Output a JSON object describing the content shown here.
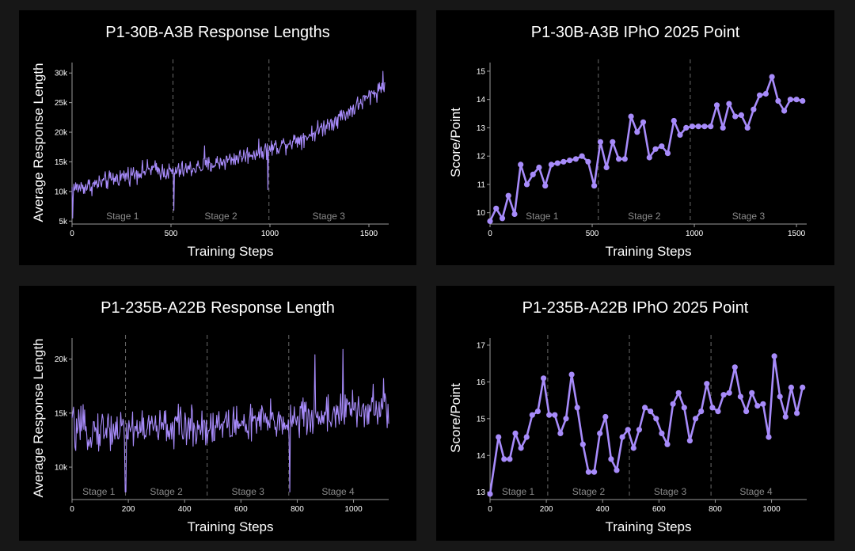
{
  "colors": {
    "background": "#171717",
    "panel": "#000000",
    "series": "#a78bfa",
    "text": "#ffffff",
    "stage_text": "#8a8a8a"
  },
  "chart_data": [
    {
      "id": "p30-len",
      "type": "line",
      "marker": false,
      "title": "P1-30B-A3B Response Lengths",
      "xlabel": "Training Steps",
      "ylabel": "Average Response Length",
      "xlim": [
        0,
        1600
      ],
      "ylim": [
        4500,
        31500
      ],
      "xticks": [
        0,
        500,
        1000,
        1500
      ],
      "xtick_labels": [
        "0",
        "500",
        "1000",
        "1500"
      ],
      "yticks": [
        5000,
        10000,
        15000,
        20000,
        25000,
        30000
      ],
      "ytick_labels": [
        "5k",
        "10k",
        "15k",
        "20k",
        "25k",
        "30k"
      ],
      "stage_boundaries": [
        510,
        995
      ],
      "stages": [
        {
          "label": "Stage 1",
          "x": 255
        },
        {
          "label": "Stage 2",
          "x": 752
        },
        {
          "label": "Stage 3",
          "x": 1297
        }
      ],
      "trend": {
        "x": [
          0,
          100,
          250,
          400,
          500,
          700,
          900,
          1000,
          1200,
          1300,
          1400,
          1500,
          1580
        ],
        "y": [
          10500,
          11000,
          12500,
          13800,
          13200,
          14500,
          16300,
          17200,
          19500,
          21500,
          23500,
          26000,
          28000
        ]
      },
      "noise": 1300,
      "n_points": 520,
      "spikes": [
        {
          "x": 3,
          "y": 5500
        },
        {
          "x": 515,
          "y": 6800
        },
        {
          "x": 990,
          "y": 10300
        },
        {
          "x": 670,
          "y": 17700
        },
        {
          "x": 1570,
          "y": 30300
        }
      ]
    },
    {
      "id": "p30-pt",
      "type": "line",
      "marker": true,
      "title": "P1-30B-A3B IPhO 2025 Point",
      "xlabel": "Training Steps",
      "ylabel": "Score/Point",
      "xlim": [
        0,
        1550
      ],
      "ylim": [
        9.6,
        15.25
      ],
      "xticks": [
        0,
        500,
        1000,
        1500
      ],
      "xtick_labels": [
        "0",
        "500",
        "1000",
        "1500"
      ],
      "yticks": [
        10,
        11,
        12,
        13,
        14,
        15
      ],
      "ytick_labels": [
        "10",
        "11",
        "12",
        "13",
        "14",
        "15"
      ],
      "stage_boundaries": [
        530,
        980
      ],
      "stages": [
        {
          "label": "Stage 1",
          "x": 255
        },
        {
          "label": "Stage 2",
          "x": 755
        },
        {
          "label": "Stage 3",
          "x": 1265
        }
      ],
      "x": [
        0,
        30,
        60,
        90,
        120,
        150,
        180,
        210,
        240,
        270,
        300,
        330,
        360,
        390,
        420,
        450,
        480,
        510,
        540,
        570,
        600,
        630,
        660,
        690,
        720,
        750,
        780,
        810,
        840,
        870,
        900,
        930,
        960,
        990,
        1020,
        1050,
        1080,
        1110,
        1140,
        1170,
        1200,
        1230,
        1260,
        1290,
        1320,
        1350,
        1380,
        1410,
        1440,
        1470,
        1500,
        1530
      ],
      "y": [
        9.7,
        10.15,
        9.8,
        10.6,
        9.95,
        11.7,
        11.0,
        11.35,
        11.6,
        10.95,
        11.7,
        11.75,
        11.8,
        11.85,
        11.9,
        12.0,
        11.8,
        10.95,
        12.5,
        11.6,
        12.5,
        11.9,
        11.9,
        13.4,
        12.85,
        13.2,
        11.95,
        12.25,
        12.35,
        12.1,
        13.25,
        12.75,
        13.0,
        13.05,
        13.05,
        13.05,
        13.05,
        13.8,
        13.0,
        13.85,
        13.4,
        13.45,
        13.0,
        13.65,
        14.15,
        14.2,
        14.8,
        13.95,
        13.6,
        14.0,
        14.0,
        13.95
      ]
    },
    {
      "id": "p235-len",
      "type": "line",
      "marker": false,
      "title": "P1-235B-A22B Response Length",
      "xlabel": "Training Steps",
      "ylabel": "Average Response Length",
      "xlim": [
        0,
        1125
      ],
      "ylim": [
        7000,
        21800
      ],
      "xticks": [
        0,
        200,
        400,
        600,
        800,
        1000
      ],
      "xtick_labels": [
        "0",
        "200",
        "400",
        "600",
        "800",
        "1000"
      ],
      "yticks": [
        10000,
        15000,
        20000
      ],
      "ytick_labels": [
        "10k",
        "15k",
        "20k"
      ],
      "stage_boundaries": [
        190,
        480,
        770
      ],
      "stages": [
        {
          "label": "Stage 1",
          "x": 95
        },
        {
          "label": "Stage 2",
          "x": 335
        },
        {
          "label": "Stage 3",
          "x": 625
        },
        {
          "label": "Stage 4",
          "x": 945
        }
      ],
      "trend": {
        "x": [
          0,
          190,
          480,
          770,
          1000,
          1125
        ],
        "y": [
          13300,
          13600,
          13800,
          14300,
          15300,
          15300
        ]
      },
      "noise": 1600,
      "n_points": 430,
      "spikes": [
        {
          "x": 3,
          "y": 15000
        },
        {
          "x": 190,
          "y": 7700
        },
        {
          "x": 773,
          "y": 7700
        },
        {
          "x": 863,
          "y": 20400
        },
        {
          "x": 963,
          "y": 20900
        },
        {
          "x": 1107,
          "y": 18200
        }
      ]
    },
    {
      "id": "p235-pt",
      "type": "line",
      "marker": true,
      "title": "P1-235B-A22B IPhO 2025 Point",
      "xlabel": "Training Steps",
      "ylabel": "Score/Point",
      "xlim": [
        0,
        1125
      ],
      "ylim": [
        12.8,
        17.15
      ],
      "xticks": [
        0,
        200,
        400,
        600,
        800,
        1000
      ],
      "xtick_labels": [
        "0",
        "200",
        "400",
        "600",
        "800",
        "1000"
      ],
      "yticks": [
        13,
        14,
        15,
        16,
        17
      ],
      "ytick_labels": [
        "13",
        "14",
        "15",
        "16",
        "17"
      ],
      "stage_boundaries": [
        205,
        495,
        785
      ],
      "stages": [
        {
          "label": "Stage 1",
          "x": 100
        },
        {
          "label": "Stage 2",
          "x": 350
        },
        {
          "label": "Stage 3",
          "x": 640
        },
        {
          "label": "Stage 4",
          "x": 945
        }
      ],
      "x": [
        0,
        30,
        50,
        70,
        90,
        110,
        130,
        150,
        170,
        190,
        210,
        230,
        250,
        270,
        290,
        310,
        330,
        350,
        370,
        390,
        410,
        430,
        450,
        470,
        490,
        510,
        530,
        550,
        570,
        590,
        610,
        630,
        650,
        670,
        690,
        710,
        730,
        750,
        770,
        790,
        810,
        830,
        850,
        870,
        890,
        910,
        930,
        950,
        970,
        990,
        1010,
        1030,
        1050,
        1070,
        1090,
        1110
      ],
      "y": [
        12.95,
        14.5,
        13.9,
        13.9,
        14.6,
        14.2,
        14.5,
        15.1,
        15.2,
        16.1,
        15.1,
        15.1,
        14.6,
        15.0,
        16.2,
        15.3,
        14.3,
        13.55,
        13.55,
        14.6,
        15.05,
        13.9,
        13.6,
        14.5,
        14.7,
        14.2,
        14.7,
        15.3,
        15.2,
        15.0,
        14.6,
        14.3,
        15.4,
        15.7,
        15.3,
        14.4,
        15.0,
        15.2,
        15.95,
        15.3,
        15.2,
        15.65,
        15.7,
        16.4,
        15.6,
        15.2,
        15.7,
        15.35,
        15.4,
        14.5,
        16.7,
        15.6,
        15.05,
        15.85,
        15.15,
        15.85
      ]
    }
  ]
}
